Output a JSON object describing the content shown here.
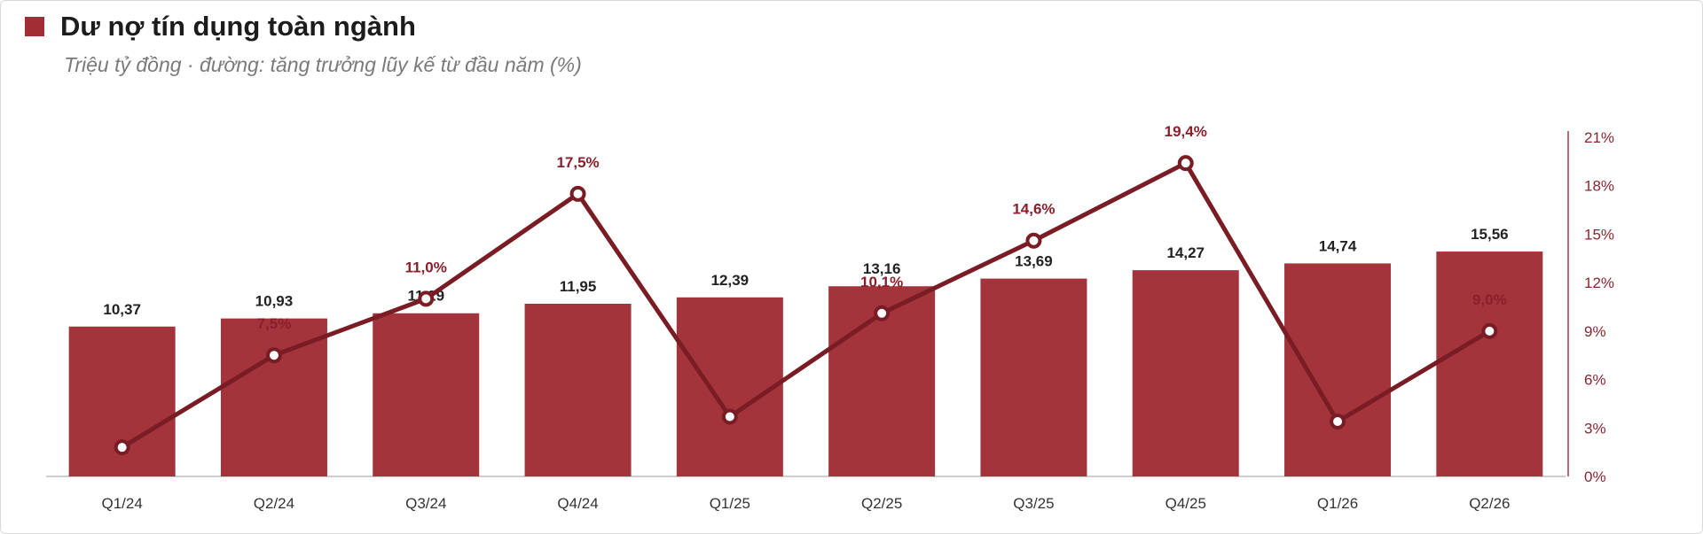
{
  "header": {
    "title": "Dư nợ tín dụng toàn ngành",
    "subtitle": "Triệu tỷ đồng · đường: tăng trưởng lũy kế từ đầu năm (%)"
  },
  "chart_data": {
    "type": "bar",
    "title": "Dư nợ tín dụng toàn ngành",
    "subtitle": "Triệu tỷ đồng · đường: tăng trưởng lũy kế từ đầu năm (%)",
    "categories": [
      "Q1/24",
      "Q2/24",
      "Q3/24",
      "Q4/24",
      "Q1/25",
      "Q2/25",
      "Q3/25",
      "Q4/25",
      "Q1/26",
      "Q2/26"
    ],
    "bars": {
      "values": [
        10.37,
        10.93,
        11.29,
        11.95,
        12.39,
        13.16,
        13.69,
        14.27,
        14.74,
        15.56
      ],
      "labels": [
        "10,37",
        "10,93",
        "11,29",
        "11,95",
        "12,39",
        "13,16",
        "13,69",
        "14,27",
        "14,74",
        "15,56"
      ],
      "color": "#a4343b"
    },
    "line": {
      "values": [
        1.8,
        7.5,
        11.0,
        17.5,
        3.7,
        10.1,
        14.6,
        19.4,
        3.4,
        9.0
      ],
      "labels": [
        "",
        "7,5%",
        "11,0%",
        "17,5%",
        "",
        "10,1%",
        "14,6%",
        "19,4%",
        "",
        "9,0%"
      ],
      "color": "#7a1c24"
    },
    "y_right": {
      "range": [
        0,
        21
      ],
      "ticks": [
        0,
        3,
        6,
        9,
        12,
        15,
        18,
        21
      ],
      "tick_labels": [
        "0%",
        "3%",
        "6%",
        "9%",
        "12%",
        "15%",
        "18%",
        "21%"
      ]
    },
    "bar_range": [
      0,
      25
    ],
    "grid": false,
    "legend": "none"
  }
}
